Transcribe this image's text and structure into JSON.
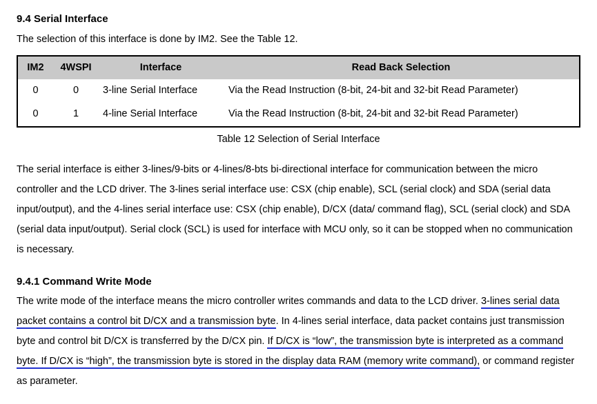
{
  "section": {
    "number": "9.4",
    "title": "Serial Interface",
    "intro": "The selection of this interface is done by IM2. See the Table 12."
  },
  "table": {
    "columns": [
      "IM2",
      "4WSPI",
      "Interface",
      "Read Back Selection"
    ],
    "rows": [
      [
        "0",
        "0",
        "3-line Serial Interface",
        "Via the Read Instruction (8-bit, 24-bit and 32-bit Read Parameter)"
      ],
      [
        "0",
        "1",
        "4-line Serial Interface",
        "Via the Read Instruction (8-bit, 24-bit and 32-bit Read Parameter)"
      ]
    ],
    "caption": "Table 12 Selection of Serial Interface"
  },
  "para1": "The serial interface is either 3-lines/9-bits or 4-lines/8-bts bi-directional interface for communication between the micro controller and the LCD driver. The 3-lines serial interface use: CSX (chip enable), SCL (serial clock) and SDA (serial data input/output), and the 4-lines serial interface use: CSX (chip enable), D/CX (data/ command flag), SCL (serial clock) and SDA (serial data input/output). Serial clock (SCL) is used for interface with MCU only, so it can be stopped when no communication is necessary.",
  "subsection": {
    "number": "9.4.1",
    "title": "Command Write Mode",
    "runs": [
      {
        "t": "The write mode of the interface means the micro controller writes commands and data to the LCD driver. ",
        "u": false
      },
      {
        "t": "3-lines serial data packet contains a control bit D/CX and a transmission byte",
        "u": true
      },
      {
        "t": ". In 4-lines serial interface, data packet contains just transmission byte and control bit D/CX is transferred by the D/CX pin. ",
        "u": false
      },
      {
        "t": "If D/CX is “low”, the transmission byte is interpreted as a command byte. If D/CX is “high”, the transmission byte is stored in the display data RAM (memory write command),",
        "u": true
      },
      {
        "t": " or command register as parameter.",
        "u": false
      }
    ]
  }
}
